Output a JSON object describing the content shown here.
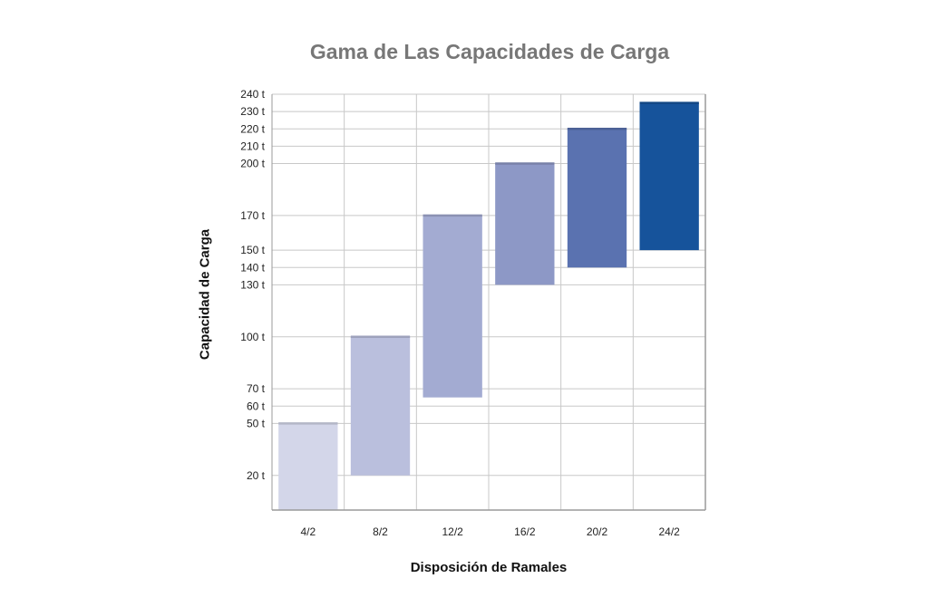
{
  "chart_data": {
    "type": "bar",
    "title": "Gama de Las Capacidades de Carga",
    "xlabel": "Disposición de Ramales",
    "ylabel": "Capacidad de Carga",
    "categories": [
      "4/2",
      "8/2",
      "12/2",
      "16/2",
      "20/2",
      "24/2"
    ],
    "ranges": [
      {
        "low": 0,
        "high": 50
      },
      {
        "low": 20,
        "high": 100
      },
      {
        "low": 65,
        "high": 170
      },
      {
        "low": 130,
        "high": 200
      },
      {
        "low": 140,
        "high": 220
      },
      {
        "low": 150,
        "high": 235
      }
    ],
    "bar_colors": [
      "#d3d6e9",
      "#babfdd",
      "#a3abd2",
      "#8d98c6",
      "#5a72b0",
      "#16539b"
    ],
    "ylim": [
      0,
      240
    ],
    "yticks": [
      20,
      50,
      60,
      70,
      100,
      130,
      140,
      150,
      170,
      200,
      210,
      220,
      230,
      240
    ],
    "ytick_labels": [
      "20 t",
      "50 t",
      "60 t",
      "70 t",
      "100 t",
      "130 t",
      "140 t",
      "150 t",
      "170 t",
      "200 t",
      "210 t",
      "220 t",
      "230 t",
      "240 t"
    ],
    "grid": true
  }
}
